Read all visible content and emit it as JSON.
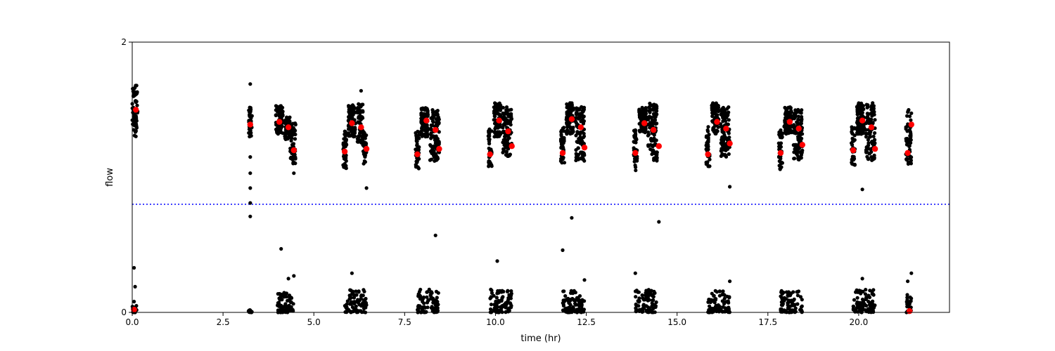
{
  "chart_data": {
    "type": "scatter",
    "title": "",
    "xlabel": "time (hr)",
    "ylabel": "flow",
    "xlim": [
      0,
      22.5
    ],
    "ylim": [
      0,
      2
    ],
    "xticks": [
      0.0,
      2.5,
      5.0,
      7.5,
      10.0,
      12.5,
      15.0,
      17.5,
      20.0
    ],
    "xtick_labels": [
      "0.0",
      "2.5",
      "5.0",
      "7.5",
      "10.0",
      "12.5",
      "15.0",
      "17.5",
      "20.0"
    ],
    "yticks": [
      0,
      2
    ],
    "ytick_labels": [
      "0",
      "2"
    ],
    "grid": false,
    "legend": "none",
    "threshold_line": {
      "y": 0.8,
      "color": "#0000ff",
      "style": "dotted"
    },
    "series": [
      {
        "marker_color": "#000000",
        "marker": "small-dot",
        "clusters": [
          {
            "x": [
              0.0,
              0.15
            ],
            "y": [
              1.3,
              1.68
            ]
          },
          {
            "x": [
              3.2,
              3.3
            ],
            "y": [
              1.3,
              1.52
            ]
          },
          {
            "x": [
              3.95,
              4.15
            ],
            "y": [
              1.32,
              1.53
            ]
          },
          {
            "x": [
              4.2,
              4.35
            ],
            "y": [
              1.28,
              1.45
            ]
          },
          {
            "x": [
              4.35,
              4.5
            ],
            "y": [
              1.1,
              1.4
            ]
          },
          {
            "x": [
              5.8,
              5.9
            ],
            "y": [
              1.05,
              1.35
            ]
          },
          {
            "x": [
              5.95,
              6.15
            ],
            "y": [
              1.3,
              1.55
            ]
          },
          {
            "x": [
              6.2,
              6.35
            ],
            "y": [
              1.25,
              1.55
            ]
          },
          {
            "x": [
              6.35,
              6.45
            ],
            "y": [
              1.1,
              1.35
            ]
          },
          {
            "x": [
              7.8,
              7.9
            ],
            "y": [
              1.05,
              1.35
            ]
          },
          {
            "x": [
              7.95,
              8.15
            ],
            "y": [
              1.3,
              1.52
            ]
          },
          {
            "x": [
              8.2,
              8.45
            ],
            "y": [
              1.12,
              1.5
            ]
          },
          {
            "x": [
              9.8,
              9.9
            ],
            "y": [
              1.08,
              1.38
            ]
          },
          {
            "x": [
              9.95,
              10.15
            ],
            "y": [
              1.3,
              1.55
            ]
          },
          {
            "x": [
              10.2,
              10.45
            ],
            "y": [
              1.15,
              1.52
            ]
          },
          {
            "x": [
              11.8,
              11.9
            ],
            "y": [
              1.08,
              1.38
            ]
          },
          {
            "x": [
              11.95,
              12.15
            ],
            "y": [
              1.32,
              1.55
            ]
          },
          {
            "x": [
              12.2,
              12.45
            ],
            "y": [
              1.12,
              1.52
            ]
          },
          {
            "x": [
              13.8,
              13.9
            ],
            "y": [
              1.05,
              1.35
            ]
          },
          {
            "x": [
              13.95,
              14.15
            ],
            "y": [
              1.32,
              1.52
            ]
          },
          {
            "x": [
              14.2,
              14.45
            ],
            "y": [
              1.12,
              1.55
            ]
          },
          {
            "x": [
              15.8,
              15.9
            ],
            "y": [
              1.08,
              1.38
            ]
          },
          {
            "x": [
              15.95,
              16.15
            ],
            "y": [
              1.32,
              1.55
            ]
          },
          {
            "x": [
              16.2,
              16.45
            ],
            "y": [
              1.15,
              1.52
            ]
          },
          {
            "x": [
              17.8,
              17.9
            ],
            "y": [
              1.05,
              1.35
            ]
          },
          {
            "x": [
              17.95,
              18.15
            ],
            "y": [
              1.32,
              1.52
            ]
          },
          {
            "x": [
              18.2,
              18.45
            ],
            "y": [
              1.12,
              1.5
            ]
          },
          {
            "x": [
              19.8,
              19.9
            ],
            "y": [
              1.08,
              1.38
            ]
          },
          {
            "x": [
              19.95,
              20.15
            ],
            "y": [
              1.32,
              1.55
            ]
          },
          {
            "x": [
              20.2,
              20.45
            ],
            "y": [
              1.12,
              1.55
            ]
          },
          {
            "x": [
              21.3,
              21.45
            ],
            "y": [
              1.08,
              1.5
            ]
          }
        ],
        "low_clusters": [
          {
            "x": [
              0.0,
              0.12
            ],
            "y": [
              0.0,
              0.05
            ]
          },
          {
            "x": [
              3.2,
              3.3
            ],
            "y": [
              0.0,
              0.03
            ]
          },
          {
            "x": [
              4.0,
              4.45
            ],
            "y": [
              0.0,
              0.16
            ]
          },
          {
            "x": [
              5.85,
              6.45
            ],
            "y": [
              0.0,
              0.17
            ]
          },
          {
            "x": [
              7.85,
              8.45
            ],
            "y": [
              0.0,
              0.17
            ]
          },
          {
            "x": [
              9.85,
              10.45
            ],
            "y": [
              0.0,
              0.17
            ]
          },
          {
            "x": [
              11.85,
              12.45
            ],
            "y": [
              0.0,
              0.16
            ]
          },
          {
            "x": [
              13.85,
              14.45
            ],
            "y": [
              0.0,
              0.17
            ]
          },
          {
            "x": [
              15.85,
              16.45
            ],
            "y": [
              0.0,
              0.16
            ]
          },
          {
            "x": [
              17.85,
              18.45
            ],
            "y": [
              0.0,
              0.16
            ]
          },
          {
            "x": [
              19.85,
              20.45
            ],
            "y": [
              0.0,
              0.17
            ]
          },
          {
            "x": [
              21.3,
              21.45
            ],
            "y": [
              0.0,
              0.16
            ]
          }
        ],
        "isolated_points": [
          {
            "x": 0.05,
            "y": 0.33
          },
          {
            "x": 0.08,
            "y": 0.19
          },
          {
            "x": 0.05,
            "y": 0.08
          },
          {
            "x": 3.25,
            "y": 1.69
          },
          {
            "x": 3.25,
            "y": 1.15
          },
          {
            "x": 3.25,
            "y": 1.03
          },
          {
            "x": 3.25,
            "y": 0.92
          },
          {
            "x": 3.25,
            "y": 0.81
          },
          {
            "x": 3.25,
            "y": 0.71
          },
          {
            "x": 4.1,
            "y": 0.47
          },
          {
            "x": 4.3,
            "y": 0.25
          },
          {
            "x": 4.45,
            "y": 0.27
          },
          {
            "x": 4.45,
            "y": 1.03
          },
          {
            "x": 6.05,
            "y": 0.29
          },
          {
            "x": 6.3,
            "y": 1.64
          },
          {
            "x": 6.45,
            "y": 0.92
          },
          {
            "x": 8.35,
            "y": 0.57
          },
          {
            "x": 10.05,
            "y": 0.38
          },
          {
            "x": 11.85,
            "y": 0.46
          },
          {
            "x": 12.1,
            "y": 0.7
          },
          {
            "x": 12.45,
            "y": 0.24
          },
          {
            "x": 13.85,
            "y": 0.29
          },
          {
            "x": 14.5,
            "y": 0.67
          },
          {
            "x": 16.45,
            "y": 0.93
          },
          {
            "x": 16.45,
            "y": 0.23
          },
          {
            "x": 20.1,
            "y": 0.91
          },
          {
            "x": 20.1,
            "y": 0.25
          },
          {
            "x": 21.45,
            "y": 0.29
          },
          {
            "x": 21.35,
            "y": 0.23
          }
        ]
      },
      {
        "marker_color": "#ff0000",
        "marker": "large-dot",
        "x": [
          0.1,
          3.25,
          4.05,
          4.3,
          4.45,
          5.85,
          6.05,
          6.3,
          6.45,
          7.85,
          8.1,
          8.35,
          8.45,
          9.85,
          10.1,
          10.35,
          10.45,
          11.85,
          12.1,
          12.35,
          12.45,
          13.85,
          14.1,
          14.35,
          14.5,
          15.85,
          16.1,
          16.35,
          16.45,
          17.85,
          18.1,
          18.35,
          18.45,
          19.85,
          20.1,
          20.35,
          20.45,
          21.35,
          21.45,
          0.05,
          21.4
        ],
        "y": [
          1.5,
          1.39,
          1.41,
          1.37,
          1.2,
          1.19,
          1.4,
          1.37,
          1.21,
          1.17,
          1.42,
          1.35,
          1.21,
          1.17,
          1.42,
          1.34,
          1.23,
          1.18,
          1.43,
          1.37,
          1.22,
          1.18,
          1.4,
          1.35,
          1.23,
          1.17,
          1.41,
          1.36,
          1.25,
          1.18,
          1.41,
          1.36,
          1.24,
          1.2,
          1.42,
          1.37,
          1.21,
          1.18,
          1.39,
          0.02,
          0.01
        ]
      }
    ]
  }
}
